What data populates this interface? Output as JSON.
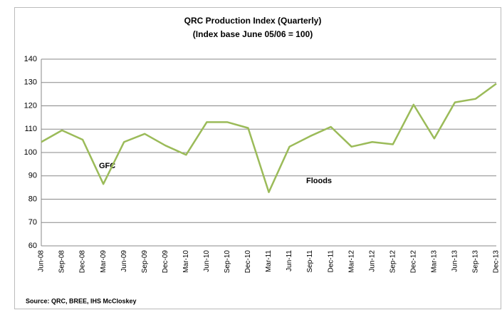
{
  "chart_data": {
    "type": "line",
    "title": "QRC Production Index (Quarterly)",
    "subtitle": "(Index base June 05/06 = 100)",
    "categories": [
      "Jun-08",
      "Sep-08",
      "Dec-08",
      "Mar-09",
      "Jun-09",
      "Sep-09",
      "Dec-09",
      "Mar-10",
      "Jun-10",
      "Sep-10",
      "Dec-10",
      "Mar-11",
      "Jun-11",
      "Sep-11",
      "Dec-11",
      "Mar-12",
      "Jun-12",
      "Sep-12",
      "Dec-12",
      "Mar-13",
      "Jun-13",
      "Sep-13",
      "Dec-13"
    ],
    "values": [
      104.5,
      109.5,
      105.5,
      86.5,
      104.5,
      108,
      103,
      99,
      113,
      113,
      110.5,
      83,
      102.5,
      107,
      111,
      102.5,
      104.5,
      103.5,
      120.5,
      106,
      121.5,
      123,
      129.5
    ],
    "color": "#9bbb59",
    "ylim": [
      60,
      140
    ],
    "yticks": [
      60,
      70,
      80,
      90,
      100,
      110,
      120,
      130,
      140
    ],
    "grid": true,
    "annotations": [
      "GFC",
      "Floods"
    ],
    "source": "Source: QRC, BREE, IHS McCloskey"
  }
}
